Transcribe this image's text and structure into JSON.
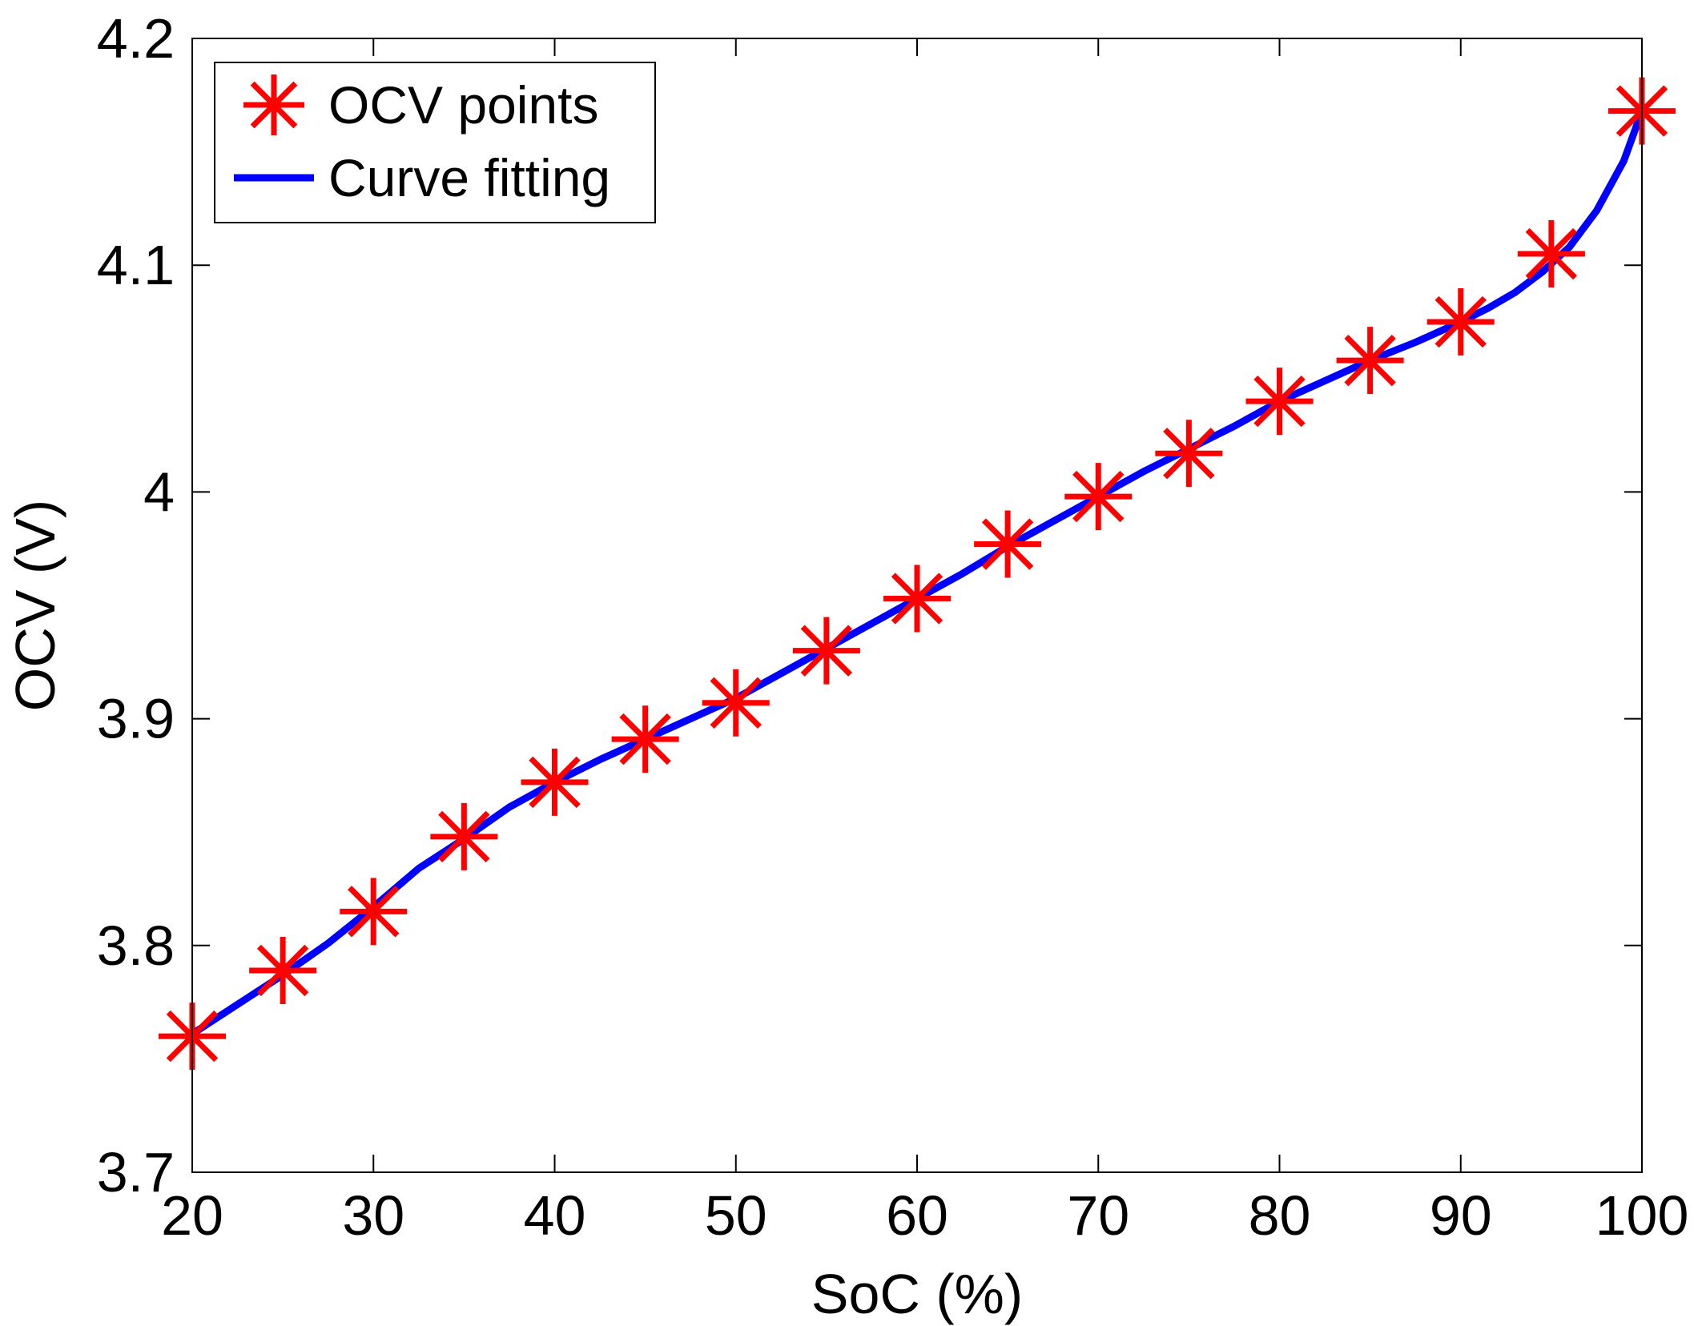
{
  "chart_data": {
    "type": "line",
    "title": "",
    "xlabel": "SoC (%)",
    "ylabel": "OCV (V)",
    "xlim": [
      20,
      100
    ],
    "ylim": [
      3.7,
      4.2
    ],
    "x_ticks": [
      20,
      30,
      40,
      50,
      60,
      70,
      80,
      90,
      100
    ],
    "x_tick_labels": [
      "20",
      "30",
      "40",
      "50",
      "60",
      "70",
      "80",
      "90",
      "100"
    ],
    "y_ticks": [
      3.7,
      3.8,
      3.9,
      4.0,
      4.1,
      4.2
    ],
    "y_tick_labels": [
      "3.7",
      "3.8",
      "3.9",
      "4",
      "4.1",
      "4.2"
    ],
    "grid": false,
    "legend_position": "top-left",
    "series": [
      {
        "name": "OCV points",
        "style": "marker-asterisk",
        "color": "#ff0000",
        "x": [
          20,
          25,
          30,
          35,
          40,
          45,
          50,
          55,
          60,
          65,
          70,
          75,
          80,
          85,
          90,
          95,
          100
        ],
        "y": [
          3.76,
          3.789,
          3.815,
          3.848,
          3.872,
          3.891,
          3.907,
          3.93,
          3.953,
          3.977,
          3.998,
          4.017,
          4.04,
          4.058,
          4.075,
          4.105,
          4.168
        ]
      },
      {
        "name": "Curve fitting",
        "style": "line",
        "color": "#0000ff",
        "x": [
          20,
          22.5,
          25,
          27.5,
          30,
          32.5,
          35,
          37.5,
          40,
          42.5,
          45,
          47.5,
          50,
          52.5,
          55,
          57.5,
          60,
          62.5,
          65,
          67.5,
          70,
          72.5,
          75,
          77.5,
          80,
          82.5,
          85,
          87.5,
          90,
          91.5,
          93,
          94.5,
          96,
          97.5,
          99,
          100
        ],
        "y": [
          3.761,
          3.774,
          3.787,
          3.801,
          3.817,
          3.834,
          3.847,
          3.861,
          3.872,
          3.882,
          3.891,
          3.9,
          3.909,
          3.92,
          3.931,
          3.942,
          3.953,
          3.964,
          3.976,
          3.987,
          3.998,
          4.009,
          4.019,
          4.029,
          4.04,
          4.049,
          4.058,
          4.066,
          4.075,
          4.081,
          4.088,
          4.097,
          4.108,
          4.124,
          4.146,
          4.168
        ]
      }
    ]
  }
}
